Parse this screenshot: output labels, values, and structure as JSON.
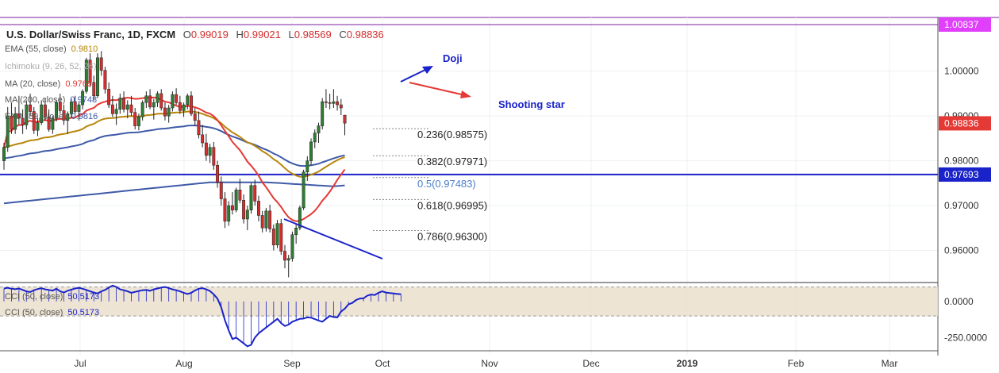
{
  "header": {
    "symbol": "U.S. Dollar/Swiss Franc, 1D, FXCM",
    "open_label": "O",
    "open": "0.99019",
    "high_label": "H",
    "high": "0.99021",
    "low_label": "L",
    "low": "0.98569",
    "close_label": "C",
    "close": "0.98836"
  },
  "indicators": [
    {
      "label": "EMA (55, close)",
      "value": "0.9810",
      "color": "#b8860b"
    },
    {
      "label": "Ichimoku (9, 26, 52, 26)",
      "value": "",
      "color": "#9e9e9e"
    },
    {
      "label": "MA (20, close)",
      "value": "0.9769",
      "color": "#e53935"
    },
    {
      "label": "MA (200, close)",
      "value": "0.9748",
      "color": "#3f5aa8"
    },
    {
      "label": "EMA (89, close)",
      "value": "0.9816",
      "color": "#3f5aa8"
    }
  ],
  "cci_panel": {
    "labels": [
      {
        "label": "CCI (50, close)",
        "value": "50.5173"
      },
      {
        "label": "CCI (50, close)",
        "value": "50.5173"
      }
    ]
  },
  "annotations": {
    "doji": "Doji",
    "shooting_star": "Shooting star"
  },
  "chart_data": {
    "type": "candlestick",
    "x_ticks": [
      "Jul",
      "Aug",
      "Sep",
      "Oct",
      "Nov",
      "Dec",
      "2019",
      "Feb",
      "Mar"
    ],
    "y_ticks": [
      "1.00000",
      "0.99000",
      "0.98000",
      "0.97000",
      "0.96000"
    ],
    "ylim": [
      0.953,
      1.012
    ],
    "price_labels": [
      {
        "value": "1.00837",
        "price": 1.00837,
        "color": "#e040fb",
        "line_color": "#7b1fa2"
      },
      {
        "value": "0.98836",
        "price": 0.98836,
        "color": "#e53935"
      },
      {
        "value": "0.97693",
        "price": 0.97693,
        "color": "#1a23c9"
      }
    ],
    "fib_levels": [
      {
        "label": "0.236(0.98575)",
        "price": 0.98575,
        "color": "#222"
      },
      {
        "label": "0.382(0.97971)",
        "price": 0.97971,
        "color": "#222"
      },
      {
        "label": "0.5(0.97483)",
        "price": 0.97483,
        "color": "#4a7ec9"
      },
      {
        "label": "0.618(0.96995)",
        "price": 0.96995,
        "color": "#222"
      },
      {
        "label": "0.786(0.96300)",
        "price": 0.963,
        "color": "#222"
      }
    ],
    "cci_ticks": [
      "0.0000",
      "-250.0000"
    ],
    "cci_ylim": [
      -330,
      120
    ],
    "cci_band": [
      100,
      -100
    ],
    "cci_values": [
      90,
      95,
      88,
      85,
      90,
      80,
      70,
      65,
      78,
      86,
      92,
      84,
      80,
      75,
      88,
      70,
      62,
      74,
      82,
      90,
      95,
      88,
      80,
      70,
      62,
      55,
      70,
      80,
      96,
      110,
      100,
      84,
      78,
      70,
      60,
      66,
      72,
      78,
      80,
      74,
      84,
      90,
      96,
      100,
      92,
      84,
      78,
      70,
      60,
      52,
      60,
      76,
      88,
      92,
      84,
      72,
      50,
      20,
      -40,
      -130,
      -200,
      -260,
      -250,
      -270,
      -290,
      -310,
      -300,
      -250,
      -220,
      -200,
      -180,
      -160,
      -140,
      -120,
      -150,
      -170,
      -160,
      -140,
      -130,
      -120,
      -118,
      -110,
      -112,
      -122,
      -132,
      -140,
      -120,
      -100,
      -108,
      -110,
      -70,
      -50,
      -20,
      -10,
      10,
      20,
      22,
      40,
      48,
      45,
      60,
      70,
      62,
      58,
      55,
      52,
      50.5
    ],
    "candles": [
      [
        0.98,
        0.984,
        0.978,
        0.983
      ],
      [
        0.983,
        0.992,
        0.982,
        0.99
      ],
      [
        0.99,
        0.993,
        0.986,
        0.987
      ],
      [
        0.987,
        0.992,
        0.986,
        0.9905
      ],
      [
        0.9905,
        0.9945,
        0.988,
        0.9895
      ],
      [
        0.9895,
        0.9915,
        0.986,
        0.988
      ],
      [
        0.988,
        0.9935,
        0.987,
        0.9925
      ],
      [
        0.9925,
        0.995,
        0.99,
        0.991
      ],
      [
        0.991,
        0.992,
        0.986,
        0.9868
      ],
      [
        0.9868,
        0.9895,
        0.9855,
        0.9885
      ],
      [
        0.9885,
        0.9935,
        0.988,
        0.9925
      ],
      [
        0.9925,
        0.994,
        0.989,
        0.9898
      ],
      [
        0.9898,
        0.9915,
        0.9865,
        0.987
      ],
      [
        0.987,
        0.99,
        0.986,
        0.9895
      ],
      [
        0.9895,
        0.9935,
        0.9888,
        0.993
      ],
      [
        0.993,
        0.995,
        0.9905,
        0.9912
      ],
      [
        0.9912,
        0.9925,
        0.988,
        0.989
      ],
      [
        0.989,
        0.991,
        0.986,
        0.9905
      ],
      [
        0.9905,
        0.9938,
        0.9895,
        0.9932
      ],
      [
        0.9932,
        0.9945,
        0.9905,
        0.991
      ],
      [
        0.991,
        0.993,
        0.989,
        0.9925
      ],
      [
        0.9925,
        0.996,
        0.9915,
        0.9955
      ],
      [
        0.9955,
        1.003,
        0.995,
        1.0025
      ],
      [
        1.0025,
        1.004,
        0.9965,
        0.9975
      ],
      [
        0.9975,
        0.999,
        0.9935,
        0.9945
      ],
      [
        0.9945,
        1.004,
        0.994,
        1.003
      ],
      [
        1.003,
        1.0045,
        0.999,
        1.0002
      ],
      [
        1.0002,
        1.001,
        0.995,
        0.996
      ],
      [
        0.996,
        0.9975,
        0.9918,
        0.9925
      ],
      [
        0.9925,
        0.9945,
        0.9898,
        0.9905
      ],
      [
        0.9905,
        0.9928,
        0.988,
        0.9915
      ],
      [
        0.9915,
        0.995,
        0.9905,
        0.994
      ],
      [
        0.994,
        0.9955,
        0.9908,
        0.9915
      ],
      [
        0.9915,
        0.9935,
        0.9895,
        0.9925
      ],
      [
        0.9925,
        0.9945,
        0.99,
        0.9908
      ],
      [
        0.9908,
        0.9918,
        0.987,
        0.9878
      ],
      [
        0.9878,
        0.9905,
        0.9868,
        0.9898
      ],
      [
        0.9898,
        0.9935,
        0.989,
        0.993
      ],
      [
        0.993,
        0.9955,
        0.9918,
        0.9945
      ],
      [
        0.9945,
        0.996,
        0.9915,
        0.992
      ],
      [
        0.992,
        0.9938,
        0.9892,
        0.993
      ],
      [
        0.993,
        0.9955,
        0.992,
        0.995
      ],
      [
        0.995,
        0.996,
        0.9912,
        0.9918
      ],
      [
        0.9918,
        0.993,
        0.989,
        0.99
      ],
      [
        0.99,
        0.9925,
        0.9885,
        0.9918
      ],
      [
        0.9918,
        0.9955,
        0.991,
        0.9948
      ],
      [
        0.9948,
        0.9962,
        0.9925,
        0.993
      ],
      [
        0.993,
        0.9945,
        0.9905,
        0.9912
      ],
      [
        0.9912,
        0.993,
        0.9898,
        0.9925
      ],
      [
        0.9925,
        0.995,
        0.9915,
        0.9945
      ],
      [
        0.9945,
        0.9955,
        0.99,
        0.9905
      ],
      [
        0.9905,
        0.9918,
        0.9878,
        0.989
      ],
      [
        0.989,
        0.991,
        0.985,
        0.9858
      ],
      [
        0.9858,
        0.988,
        0.983,
        0.984
      ],
      [
        0.984,
        0.986,
        0.98,
        0.9812
      ],
      [
        0.9812,
        0.9838,
        0.9795,
        0.983
      ],
      [
        0.983,
        0.9842,
        0.978,
        0.979
      ],
      [
        0.979,
        0.98,
        0.974,
        0.9752
      ],
      [
        0.9752,
        0.9765,
        0.97,
        0.9715
      ],
      [
        0.9715,
        0.973,
        0.965,
        0.9665
      ],
      [
        0.9665,
        0.971,
        0.9655,
        0.97
      ],
      [
        0.97,
        0.973,
        0.968,
        0.969
      ],
      [
        0.969,
        0.974,
        0.9685,
        0.9735
      ],
      [
        0.9735,
        0.976,
        0.9705,
        0.9712
      ],
      [
        0.9712,
        0.9725,
        0.966,
        0.967
      ],
      [
        0.967,
        0.97,
        0.9645,
        0.969
      ],
      [
        0.969,
        0.975,
        0.9682,
        0.9745
      ],
      [
        0.9745,
        0.9758,
        0.97,
        0.971
      ],
      [
        0.971,
        0.9722,
        0.9665,
        0.9678
      ],
      [
        0.9678,
        0.9688,
        0.964,
        0.965
      ],
      [
        0.965,
        0.9695,
        0.9642,
        0.9688
      ],
      [
        0.9688,
        0.9702,
        0.964,
        0.9648
      ],
      [
        0.9648,
        0.9658,
        0.96,
        0.9612
      ],
      [
        0.9612,
        0.9668,
        0.9605,
        0.966
      ],
      [
        0.966,
        0.967,
        0.959,
        0.9598
      ],
      [
        0.9598,
        0.9612,
        0.956,
        0.9578
      ],
      [
        0.9578,
        0.959,
        0.954,
        0.9582
      ],
      [
        0.9582,
        0.9642,
        0.9575,
        0.9635
      ],
      [
        0.9635,
        0.966,
        0.9615,
        0.965
      ],
      [
        0.965,
        0.97,
        0.9645,
        0.9695
      ],
      [
        0.9695,
        0.978,
        0.969,
        0.9775
      ],
      [
        0.9775,
        0.981,
        0.9755,
        0.98
      ],
      [
        0.98,
        0.985,
        0.979,
        0.9842
      ],
      [
        0.9842,
        0.987,
        0.9828,
        0.9862
      ],
      [
        0.9862,
        0.9885,
        0.984,
        0.9878
      ],
      [
        0.9878,
        0.994,
        0.987,
        0.9932
      ],
      [
        0.9932,
        0.996,
        0.9918,
        0.993
      ],
      [
        0.993,
        0.995,
        0.9915,
        0.9928
      ],
      [
        0.9928,
        0.996,
        0.9918,
        0.9932
      ],
      [
        0.9932,
        0.9945,
        0.9912,
        0.9925
      ],
      [
        0.9925,
        0.9938,
        0.9902,
        0.9918
      ],
      [
        0.9902,
        0.9902,
        0.9857,
        0.9884
      ]
    ]
  }
}
